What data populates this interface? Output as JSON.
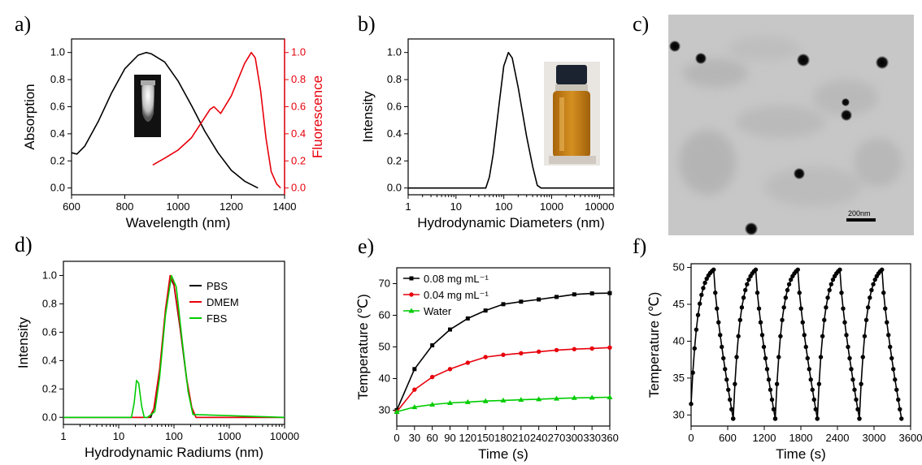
{
  "panel_labels": [
    "a)",
    "b)",
    "c)",
    "d)",
    "e)",
    "f)"
  ],
  "chart_data": [
    {
      "panel": "a)",
      "type": "line",
      "xlabel": "Wavelength (nm)",
      "ylabel": "Absorption",
      "ylabel_right": "Fluorescence",
      "xlim": [
        600,
        1400
      ],
      "ylim": [
        -0.05,
        1.1
      ],
      "xticks": [
        "600",
        "800",
        "1000",
        "1200",
        "1400"
      ],
      "yticks": [
        "0.0",
        "0.2",
        "0.4",
        "0.6",
        "0.8",
        "1.0"
      ],
      "yticks_right": [
        "0.0",
        "0.2",
        "0.4",
        "0.6",
        "0.8",
        "1.0"
      ],
      "colors": {
        "absorption": "#000000",
        "fluorescence": "#e8000b"
      },
      "series": [
        {
          "axis": "left",
          "color": "#000000",
          "x": [
            600,
            620,
            650,
            700,
            750,
            800,
            850,
            880,
            900,
            950,
            1000,
            1050,
            1100,
            1150,
            1200,
            1250,
            1300
          ],
          "y": [
            0.26,
            0.25,
            0.31,
            0.49,
            0.7,
            0.88,
            0.98,
            1.0,
            0.99,
            0.93,
            0.79,
            0.61,
            0.42,
            0.26,
            0.13,
            0.05,
            0.0
          ]
        },
        {
          "axis": "right",
          "color": "#e8000b",
          "x": [
            905,
            950,
            1000,
            1050,
            1090,
            1120,
            1135,
            1160,
            1200,
            1250,
            1275,
            1290,
            1310,
            1330,
            1350,
            1370,
            1385
          ],
          "y": [
            0.17,
            0.22,
            0.28,
            0.37,
            0.49,
            0.58,
            0.6,
            0.55,
            0.68,
            0.92,
            1.0,
            0.96,
            0.72,
            0.37,
            0.12,
            0.03,
            0.0
          ]
        }
      ]
    },
    {
      "panel": "b)",
      "type": "line",
      "xlabel": "Hydrodynamic Diameters (nm)",
      "ylabel": "Intensity",
      "xscale": "log",
      "xlim": [
        1,
        20000
      ],
      "ylim": [
        -0.05,
        1.1
      ],
      "xticks": [
        "1",
        "10",
        "100",
        "1000",
        "10000"
      ],
      "yticks": [
        "0.0",
        "0.2",
        "0.4",
        "0.6",
        "0.8",
        "1.0"
      ],
      "series": [
        {
          "color": "#000000",
          "x": [
            1,
            42,
            50,
            60,
            80,
            100,
            125,
            150,
            200,
            300,
            400,
            500,
            600,
            20000
          ],
          "y": [
            0,
            0,
            0.08,
            0.25,
            0.62,
            0.9,
            1.0,
            0.96,
            0.74,
            0.38,
            0.16,
            0.02,
            0,
            0
          ]
        }
      ]
    },
    {
      "panel": "d)",
      "type": "line",
      "xlabel": "Hydrodynamic Radiums (nm)",
      "ylabel": "Intensity",
      "xscale": "log",
      "xlim": [
        1,
        10000
      ],
      "ylim": [
        -0.05,
        1.1
      ],
      "xticks": [
        "1",
        "10",
        "100",
        "1000",
        "10000"
      ],
      "yticks": [
        "0.0",
        "0.2",
        "0.4",
        "0.6",
        "0.8",
        "1.0"
      ],
      "legend": [
        "PBS",
        "DMEM",
        "FBS"
      ],
      "series": [
        {
          "name": "PBS",
          "color": "#000000",
          "x": [
            1,
            38,
            45,
            55,
            70,
            85,
            100,
            130,
            170,
            210,
            250,
            10000
          ],
          "y": [
            0,
            0,
            0.08,
            0.32,
            0.74,
            0.99,
            0.93,
            0.62,
            0.26,
            0.06,
            0,
            0
          ]
        },
        {
          "name": "DMEM",
          "color": "#e8000b",
          "x": [
            1,
            36,
            43,
            55,
            70,
            85,
            100,
            130,
            170,
            210,
            250,
            10000
          ],
          "y": [
            0,
            0,
            0.06,
            0.34,
            0.76,
            1.0,
            0.94,
            0.63,
            0.27,
            0.07,
            0,
            0
          ]
        },
        {
          "name": "FBS",
          "color": "#00cc00",
          "x": [
            1,
            17,
            19,
            21,
            23,
            26,
            29,
            33,
            45,
            55,
            70,
            90,
            110,
            140,
            180,
            220,
            10000
          ],
          "y": [
            0,
            0,
            0.1,
            0.26,
            0.24,
            0.08,
            0,
            0,
            0.04,
            0.28,
            0.72,
            1.0,
            0.92,
            0.55,
            0.18,
            0.02,
            0
          ]
        }
      ]
    },
    {
      "panel": "e)",
      "type": "line",
      "xlabel": "Time (s)",
      "ylabel": "Temperature (℃)",
      "xlim": [
        0,
        360
      ],
      "ylim": [
        25,
        75
      ],
      "xticks": [
        "0",
        "30",
        "60",
        "90",
        "120",
        "150",
        "180",
        "210",
        "240",
        "270",
        "300",
        "330",
        "360"
      ],
      "yticks": [
        "30",
        "40",
        "50",
        "60",
        "70"
      ],
      "legend": [
        "0.08 mg mL⁻¹",
        "0.04 mg mL⁻¹",
        "Water"
      ],
      "series": [
        {
          "name": "0.08 mg mL⁻¹",
          "color": "#000000",
          "marker": "square",
          "x": [
            0,
            30,
            60,
            90,
            120,
            150,
            180,
            210,
            240,
            270,
            300,
            330,
            360
          ],
          "y": [
            30,
            43,
            50.5,
            55.5,
            59,
            61.5,
            63.5,
            64.3,
            65,
            65.8,
            66.6,
            66.9,
            67
          ]
        },
        {
          "name": "0.04 mg mL⁻¹",
          "color": "#e8000b",
          "marker": "circle",
          "x": [
            0,
            30,
            60,
            90,
            120,
            150,
            180,
            210,
            240,
            270,
            300,
            330,
            360
          ],
          "y": [
            29.5,
            36.5,
            40.5,
            43,
            45,
            46.8,
            47.5,
            48,
            48.5,
            49,
            49.3,
            49.5,
            49.8
          ]
        },
        {
          "name": "Water",
          "color": "#00cc00",
          "marker": "triangle",
          "x": [
            0,
            30,
            60,
            90,
            120,
            150,
            180,
            210,
            240,
            270,
            300,
            330,
            360
          ],
          "y": [
            29.5,
            31,
            31.8,
            32.3,
            32.6,
            32.9,
            33.1,
            33.3,
            33.5,
            33.7,
            33.9,
            34,
            34.1
          ]
        }
      ]
    },
    {
      "panel": "f)",
      "type": "line",
      "xlabel": "Time (s)",
      "ylabel": "Temperature (℃)",
      "xlim": [
        0,
        3600
      ],
      "ylim": [
        28.5,
        50.5
      ],
      "xticks": [
        "0",
        "600",
        "1200",
        "1800",
        "2400",
        "3000",
        "3600"
      ],
      "yticks": [
        "30",
        "35",
        "40",
        "45",
        "50"
      ],
      "series": [
        {
          "color": "#000000",
          "marker": "circle",
          "cycles": 5,
          "period": 690,
          "heating_duration": 370,
          "cooling_duration": 320,
          "min_temp": 29.5,
          "max_temp": 49.7
        }
      ]
    }
  ],
  "image_panel": {
    "panel": "c)",
    "scale_bar_label": "200nm"
  }
}
